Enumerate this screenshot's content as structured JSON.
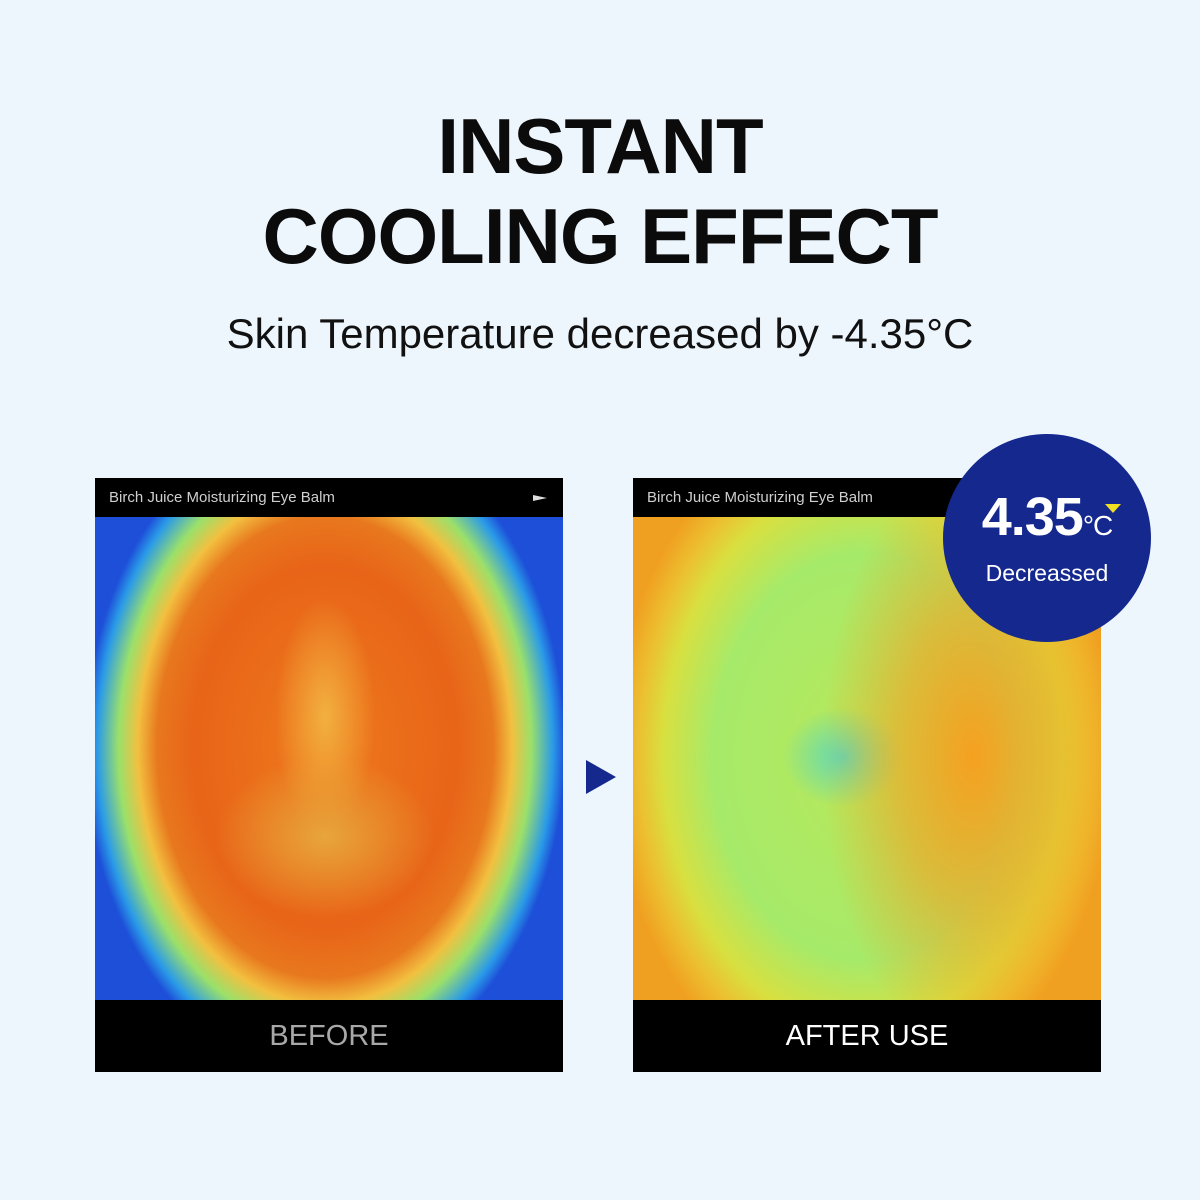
{
  "headline": {
    "line1": "INSTANT",
    "line2": "COOLING EFFECT"
  },
  "subtitle": "Skin Temperature decreased by -4.35°C",
  "panels": [
    {
      "header": "Birch Juice Moisturizing Eye Balm",
      "caption": "BEFORE"
    },
    {
      "header": "Birch Juice Moisturizing Eye Balm",
      "caption": "AFTER USE"
    }
  ],
  "badge": {
    "value": "4.35",
    "unit": "°C",
    "label": "Decreassed",
    "color": "#14288e",
    "indicator": "down-triangle"
  }
}
